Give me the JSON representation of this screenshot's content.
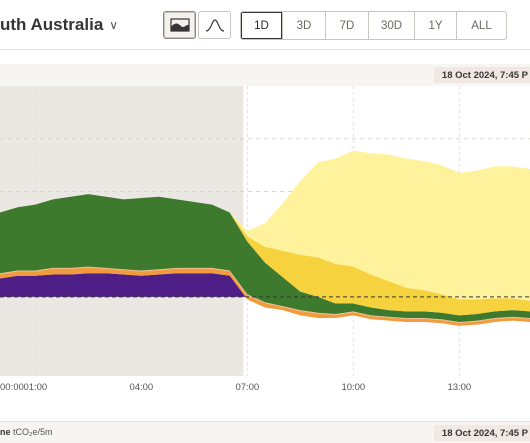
{
  "header": {
    "region_title": "uth Australia",
    "region_chevron_icon": "chevron-down-icon",
    "chart_type_buttons": [
      {
        "icon": "area-chart-icon",
        "selected": true
      },
      {
        "icon": "line-chart-icon",
        "selected": false
      }
    ],
    "ranges": [
      {
        "label": "1D",
        "selected": true
      },
      {
        "label": "3D",
        "selected": false
      },
      {
        "label": "7D",
        "selected": false
      },
      {
        "label": "30D",
        "selected": false
      },
      {
        "label": "1Y",
        "selected": false
      },
      {
        "label": "ALL",
        "selected": false
      }
    ]
  },
  "chart_header": {
    "timestamp": "18 Oct 2024, 7:45 P"
  },
  "emissions_bar": {
    "label_prefix": "ne",
    "label_unit": "tCO₂e/5m",
    "timestamp": "18 Oct 2024, 7:45 P"
  },
  "colors": {
    "solar_rooftop": "#fff29c",
    "solar_utility": "#f6d23e",
    "wind": "#3d7a2d",
    "gas": "#f19a3e",
    "gas_light": "#f5c295",
    "battery": "#4d1f86",
    "past_shading": "#ebe8e4"
  },
  "chart_data": {
    "type": "area",
    "x": [
      "00:00",
      "00:30",
      "01:00",
      "01:30",
      "02:00",
      "02:30",
      "03:00",
      "03:30",
      "04:00",
      "04:30",
      "05:00",
      "05:30",
      "06:00",
      "06:30",
      "07:00",
      "07:30",
      "08:00",
      "08:30",
      "09:00",
      "09:30",
      "10:00",
      "10:30",
      "11:00",
      "11:30",
      "12:00",
      "12:30",
      "13:00",
      "13:30",
      "14:00",
      "14:30",
      "15:00"
    ],
    "x_ticks": [
      "00:00",
      "01:00",
      "04:00",
      "07:00",
      "10:00",
      "13:00"
    ],
    "series": [
      {
        "key": "battery",
        "values": [
          14,
          16,
          16,
          17,
          17,
          18,
          18,
          17,
          16,
          17,
          18,
          18,
          18,
          16,
          -2,
          -8,
          -10,
          -14,
          -16,
          -16,
          -14,
          -17,
          -18,
          -19,
          -19,
          -20,
          -22,
          -21,
          -19,
          -18,
          -19
        ]
      },
      {
        "key": "gas",
        "values": [
          4,
          4,
          4,
          5,
          5,
          5,
          4,
          4,
          4,
          4,
          4,
          4,
          4,
          4,
          4,
          4,
          3,
          4,
          4,
          3,
          3,
          3,
          3,
          3,
          3,
          3,
          3,
          3,
          3,
          3,
          3
        ]
      },
      {
        "key": "wind",
        "values": [
          46,
          48,
          50,
          52,
          54,
          55,
          54,
          53,
          55,
          55,
          52,
          50,
          48,
          44,
          40,
          30,
          22,
          14,
          12,
          8,
          6,
          6,
          5,
          5,
          5,
          5,
          5,
          5,
          5,
          5,
          5
        ]
      },
      {
        "key": "solar_utility",
        "values": [
          0,
          0,
          0,
          0,
          0,
          0,
          0,
          0,
          0,
          0,
          0,
          0,
          0,
          0,
          4,
          12,
          20,
          28,
          30,
          30,
          28,
          25,
          22,
          18,
          16,
          14,
          12,
          11,
          10,
          9,
          8
        ]
      },
      {
        "key": "solar_rooftop",
        "values": [
          0,
          0,
          0,
          0,
          0,
          0,
          0,
          0,
          0,
          0,
          0,
          0,
          0,
          0,
          4,
          18,
          36,
          56,
          72,
          80,
          88,
          92,
          96,
          98,
          98,
          98,
          96,
          98,
          100,
          100,
          100
        ]
      }
    ],
    "ylim": [
      -60,
      160
    ],
    "grid": true,
    "past_until": "07:00"
  }
}
